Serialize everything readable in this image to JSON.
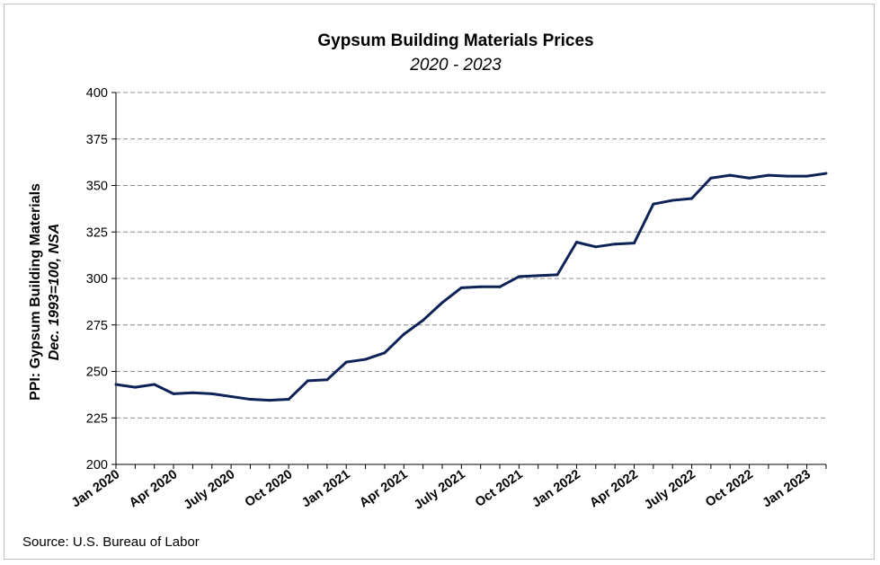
{
  "chart_data": {
    "type": "line",
    "title": "Gypsum Building Materials Prices",
    "subtitle": "2020 - 2023",
    "ylabel": "PPI: Gypsum Building Materials",
    "ylabel_line2": "Dec. 1993=100, NSA",
    "ylim": [
      200,
      400
    ],
    "yticks": [
      200,
      225,
      250,
      275,
      300,
      325,
      350,
      375,
      400
    ],
    "grid": true,
    "legend": "none",
    "line_color": "#0d2357",
    "x_tick_labels": [
      "Jan 2020",
      "Apr 2020",
      "July 2020",
      "Oct 2020",
      "Jan 2021",
      "Apr 2021",
      "July 2021",
      "Oct 2021",
      "Jan 2022",
      "Apr 2022",
      "July 2022",
      "Oct 2022",
      "Jan 2023"
    ],
    "x": [
      "2020-01",
      "2020-02",
      "2020-03",
      "2020-04",
      "2020-05",
      "2020-06",
      "2020-07",
      "2020-08",
      "2020-09",
      "2020-10",
      "2020-11",
      "2020-12",
      "2021-01",
      "2021-02",
      "2021-03",
      "2021-04",
      "2021-05",
      "2021-06",
      "2021-07",
      "2021-08",
      "2021-09",
      "2021-10",
      "2021-11",
      "2021-12",
      "2022-01",
      "2022-02",
      "2022-03",
      "2022-04",
      "2022-05",
      "2022-06",
      "2022-07",
      "2022-08",
      "2022-09",
      "2022-10",
      "2022-11",
      "2022-12",
      "2023-01",
      "2023-02"
    ],
    "values": [
      243,
      241.5,
      243,
      238,
      238.5,
      238,
      236.5,
      235,
      234.5,
      235,
      245,
      245.5,
      255,
      256.5,
      260,
      270,
      277.5,
      287,
      295,
      295.5,
      295.5,
      301,
      301.5,
      302,
      319.5,
      317,
      318.5,
      319,
      340,
      342,
      343,
      354,
      355.5,
      354,
      355.5,
      355,
      355,
      356.5
    ]
  },
  "source": "Source: U.S. Bureau of Labor"
}
